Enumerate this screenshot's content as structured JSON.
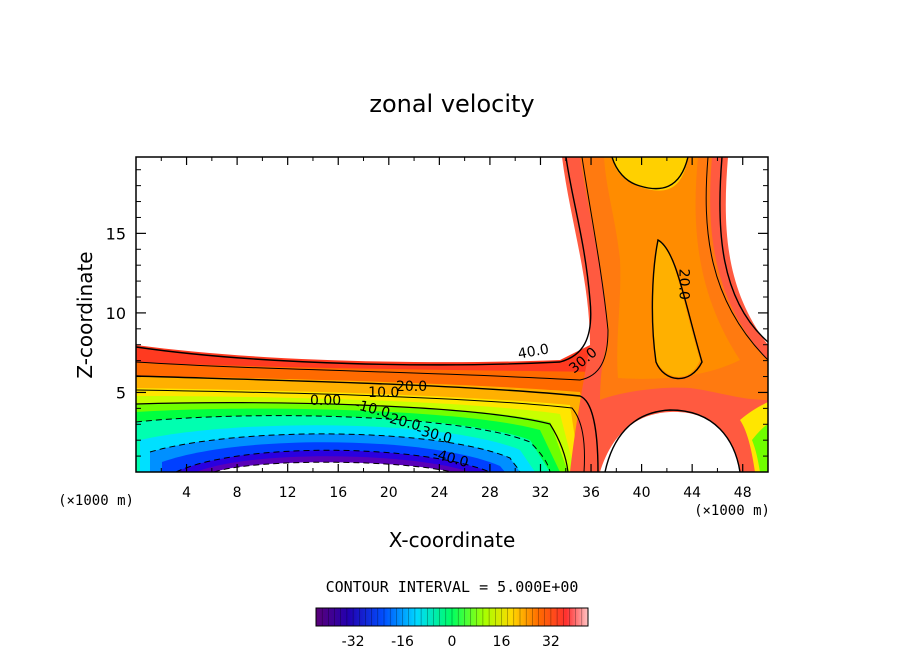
{
  "chart_data": {
    "type": "contour",
    "title": "zonal velocity",
    "xlabel": "X-coordinate",
    "ylabel": "Z-coordinate",
    "x_unit_label": "(×1000 m)",
    "xlim": [
      0,
      50
    ],
    "ylim": [
      0,
      19.8
    ],
    "xticks": [
      4,
      8,
      12,
      16,
      20,
      24,
      28,
      32,
      36,
      40,
      44,
      48
    ],
    "yticks": [
      5,
      10,
      15
    ],
    "contour_interval_text": "CONTOUR INTERVAL = 5.000E+00",
    "contour_interval": 5.0,
    "contour_labels": [
      {
        "text": "40.0",
        "x": 31.5,
        "y": 7.3
      },
      {
        "text": "30.0",
        "x": 35.6,
        "y": 6.8
      },
      {
        "text": "20.0",
        "x": 43.0,
        "y": 11.8
      },
      {
        "text": "20.0",
        "x": 21.8,
        "y": 5.1
      },
      {
        "text": "10.0",
        "x": 19.6,
        "y": 4.7
      },
      {
        "text": "0.00",
        "x": 15.0,
        "y": 4.2
      },
      {
        "text": "-10.0",
        "x": 18.6,
        "y": 3.7
      },
      {
        "text": "-20.0",
        "x": 21.0,
        "y": 2.9
      },
      {
        "text": "-30.0",
        "x": 23.5,
        "y": 2.1
      },
      {
        "text": "-40.0",
        "x": 24.8,
        "y": 0.6
      }
    ],
    "colorbar": {
      "min": -44,
      "max": 44,
      "ticks": [
        "-32",
        "-16",
        "0",
        "16",
        "32"
      ],
      "tick_values": [
        -32,
        -16,
        0,
        16,
        32
      ]
    }
  }
}
